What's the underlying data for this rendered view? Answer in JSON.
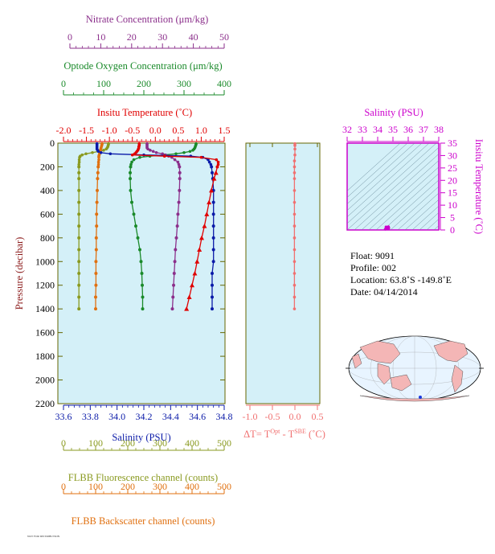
{
  "colors": {
    "nitrate": "#8b2f8b",
    "oxygen": "#1a8a2a",
    "temperature": "#e00000",
    "salinity": "#0a1aa8",
    "fluorescence": "#8a9a20",
    "backscatter": "#e07010",
    "delta_t": "#f07070",
    "ts_axis": "#cc00cc",
    "panel_bg": "#d4f0f8"
  },
  "axes": {
    "nitrate": {
      "label": "Nitrate Concentration (μm/kg)",
      "ticks": [
        "0",
        "10",
        "20",
        "30",
        "40",
        "50"
      ]
    },
    "oxygen": {
      "label": "Optode Oxygen Concentration (μm/kg)",
      "ticks": [
        "0",
        "100",
        "200",
        "300",
        "400"
      ]
    },
    "temperature": {
      "label": "Insitu Temperature (˚C)",
      "ticks": [
        "-2.0",
        "-1.5",
        "-1.0",
        "-0.5",
        "0.0",
        "0.5",
        "1.0",
        "1.5"
      ]
    },
    "pressure": {
      "label": "Pressure (decibar)",
      "ticks": [
        "0",
        "200",
        "400",
        "600",
        "800",
        "1000",
        "1200",
        "1400",
        "1600",
        "1800",
        "2000",
        "2200"
      ]
    },
    "salinity": {
      "label": "Salinity (PSU)",
      "ticks": [
        "33.6",
        "33.8",
        "34.0",
        "34.2",
        "34.4",
        "34.6",
        "34.8"
      ]
    },
    "fluorescence": {
      "label": "FLBB Fluorescence channel (counts)",
      "ticks": [
        "0",
        "100",
        "200",
        "300",
        "400",
        "500"
      ]
    },
    "backscatter": {
      "label": "FLBB Backscatter channel (counts)",
      "ticks": [
        "0",
        "100",
        "200",
        "300",
        "400",
        "500"
      ]
    },
    "delta_t": {
      "label_prefix": "ΔT= T",
      "label_sup1": "Opt",
      "label_mid": " - T",
      "label_sup2": "SBE",
      "label_suffix": " (˚C)",
      "ticks": [
        "-1.0",
        "-0.5",
        "0.0",
        "0.5"
      ]
    },
    "ts_salinity": {
      "label": "Salinity (PSU)",
      "ticks": [
        "32",
        "33",
        "34",
        "35",
        "36",
        "37",
        "38"
      ]
    },
    "ts_temperature": {
      "label": "Insitu Temperature (˚C)",
      "ticks": [
        "0",
        "5",
        "10",
        "15",
        "20",
        "25",
        "30",
        "35"
      ]
    }
  },
  "info": {
    "float": "Float:  9091",
    "profile": "Profile:  002",
    "location": "Location:  63.8˚S  -149.8˚E",
    "date": "Date:  04/14/2014"
  },
  "footer": "NOT FOR DISTRIBUTION",
  "chart_data": [
    {
      "type": "line",
      "name": "temperature",
      "x_units": "˚C",
      "xlim": [
        -2.0,
        1.5
      ],
      "ylim": [
        2200,
        0
      ],
      "pressure": [
        5,
        10,
        20,
        30,
        40,
        50,
        60,
        70,
        80,
        90,
        100,
        110,
        120,
        140,
        160,
        180,
        200,
        250,
        300,
        400,
        500,
        600,
        700,
        800,
        900,
        1000,
        1100,
        1200,
        1300,
        1400
      ],
      "values": [
        -0.35,
        -0.35,
        -0.35,
        -0.36,
        -0.36,
        -0.37,
        -0.38,
        -0.4,
        -0.42,
        -0.45,
        -0.5,
        0.2,
        1.0,
        1.33,
        1.37,
        1.37,
        1.35,
        1.32,
        1.28,
        1.22,
        1.17,
        1.12,
        1.07,
        1.01,
        0.96,
        0.91,
        0.86,
        0.8,
        0.74,
        0.68
      ]
    },
    {
      "type": "line",
      "name": "salinity",
      "x_units": "PSU",
      "xlim": [
        33.6,
        34.8
      ],
      "pressure": [
        5,
        10,
        20,
        30,
        40,
        50,
        60,
        70,
        80,
        90,
        100,
        110,
        120,
        140,
        160,
        180,
        200,
        250,
        300,
        400,
        500,
        600,
        700,
        800,
        900,
        1000,
        1100,
        1200,
        1300,
        1400
      ],
      "values": [
        33.85,
        33.85,
        33.85,
        33.85,
        33.85,
        33.85,
        33.855,
        33.86,
        33.88,
        33.95,
        34.2,
        34.55,
        34.64,
        34.68,
        34.69,
        34.7,
        34.705,
        34.71,
        34.715,
        34.72,
        34.72,
        34.72,
        34.72,
        34.72,
        34.72,
        34.72,
        34.71,
        34.71,
        34.71,
        34.71
      ]
    },
    {
      "type": "line",
      "name": "oxygen",
      "x_units": "μm/kg",
      "xlim": [
        0,
        400
      ],
      "pressure": [
        5,
        10,
        20,
        30,
        40,
        50,
        60,
        70,
        80,
        90,
        100,
        110,
        120,
        140,
        160,
        180,
        200,
        250,
        300,
        400,
        500,
        600,
        700,
        800,
        900,
        1000,
        1100,
        1200,
        1300,
        1400
      ],
      "values": [
        330,
        330,
        329,
        328,
        327,
        325,
        322,
        315,
        300,
        280,
        250,
        215,
        190,
        175,
        170,
        168,
        167,
        166,
        166,
        167,
        170,
        175,
        180,
        185,
        190,
        193,
        195,
        196,
        197,
        197
      ]
    },
    {
      "type": "line",
      "name": "nitrate",
      "x_units": "μm/kg",
      "xlim": [
        0,
        50
      ],
      "pressure": [
        5,
        10,
        20,
        30,
        40,
        50,
        60,
        70,
        80,
        90,
        100,
        110,
        120,
        140,
        160,
        180,
        200,
        250,
        300,
        400,
        500,
        600,
        700,
        800,
        900,
        1000,
        1100,
        1200,
        1300,
        1400
      ],
      "values": [
        25,
        25,
        25,
        25,
        25,
        25.3,
        26,
        27,
        28,
        30,
        31,
        32,
        33,
        34,
        35,
        35.3,
        35.5,
        35.6,
        35.6,
        35.5,
        35.3,
        35,
        34.8,
        34.5,
        34.2,
        34,
        33.8,
        33.6,
        33.4,
        33.2
      ]
    },
    {
      "type": "line",
      "name": "fluorescence",
      "x_units": "counts",
      "xlim": [
        0,
        500
      ],
      "pressure": [
        5,
        10,
        20,
        30,
        40,
        50,
        60,
        70,
        80,
        90,
        100,
        110,
        120,
        140,
        160,
        180,
        200,
        250,
        300,
        400,
        500,
        600,
        700,
        800,
        900,
        1000,
        1100,
        1200,
        1300,
        1400
      ],
      "values": [
        140,
        140,
        139,
        138,
        136,
        133,
        125,
        110,
        90,
        70,
        58,
        52,
        50,
        49,
        49,
        48,
        48,
        48,
        48,
        48,
        48,
        48,
        48,
        48,
        48,
        48,
        48,
        48,
        48,
        48
      ]
    },
    {
      "type": "line",
      "name": "backscatter",
      "x_units": "counts",
      "xlim": [
        0,
        500
      ],
      "pressure": [
        5,
        10,
        20,
        30,
        40,
        50,
        60,
        70,
        80,
        90,
        100,
        110,
        120,
        140,
        160,
        180,
        200,
        250,
        300,
        400,
        500,
        600,
        700,
        800,
        900,
        1000,
        1100,
        1200,
        1300,
        1400
      ],
      "values": [
        120,
        120,
        119,
        118,
        117,
        116,
        115,
        114,
        113,
        112,
        111,
        110,
        110,
        110,
        109,
        109,
        108,
        107,
        106,
        105,
        104,
        103,
        103,
        102,
        102,
        101,
        101,
        101,
        100,
        100
      ]
    },
    {
      "type": "line",
      "name": "delta_t",
      "x_units": "˚C",
      "xlim": [
        -1.0,
        0.5
      ],
      "pressure": [
        5,
        20,
        50,
        100,
        150,
        200,
        250,
        300,
        400,
        500,
        600,
        700,
        800,
        900,
        1000,
        1100,
        1200,
        1300,
        1400
      ],
      "values": [
        0.0,
        0.0,
        0.0,
        0.0,
        -0.01,
        -0.01,
        -0.01,
        -0.01,
        -0.01,
        -0.01,
        -0.01,
        -0.01,
        -0.01,
        -0.01,
        -0.01,
        -0.01,
        -0.01,
        -0.01,
        -0.01
      ]
    },
    {
      "type": "scatter",
      "name": "ts_diagram",
      "xlim": [
        32,
        38
      ],
      "ylim": [
        0,
        35
      ],
      "points": [
        [
          34.72,
          0.7
        ],
        [
          34.71,
          1.0
        ],
        [
          34.7,
          1.3
        ],
        [
          34.6,
          0.5
        ],
        [
          34.5,
          -0.3
        ],
        [
          34.55,
          1.2
        ],
        [
          34.65,
          0.9
        ]
      ]
    }
  ]
}
